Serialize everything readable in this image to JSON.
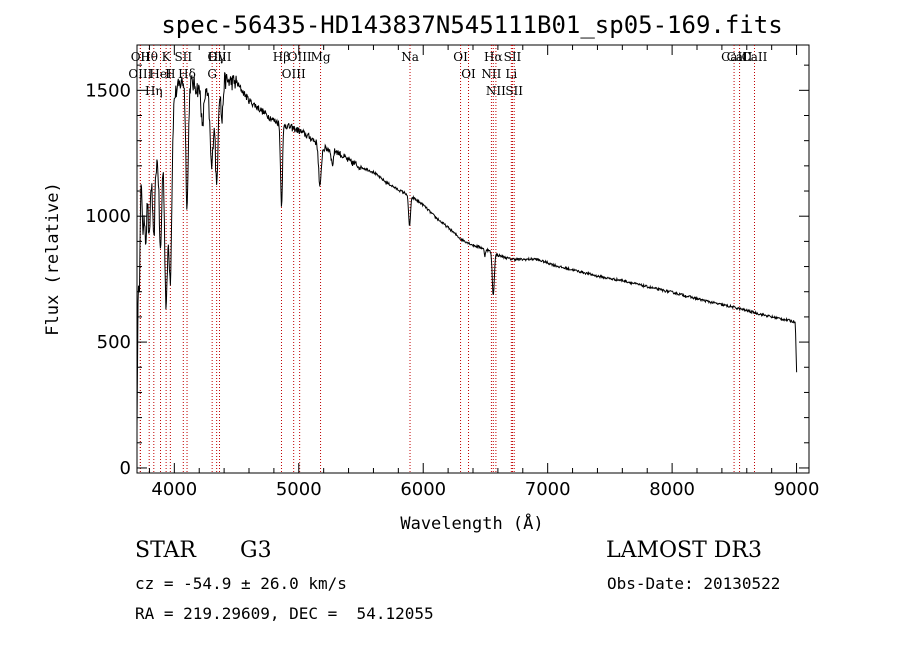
{
  "chart_data": {
    "type": "line",
    "title": "spec-56435-HD143837N545111B01_sp05-169.fits",
    "xlabel": "Wavelength (Å)",
    "ylabel": "Flux (relative)",
    "xlim": [
      3700,
      9100
    ],
    "ylim": [
      -20,
      1680
    ],
    "xticks": [
      4000,
      5000,
      6000,
      7000,
      8000,
      9000
    ],
    "yticks": [
      0,
      500,
      1000,
      1500
    ],
    "continuum": [
      [
        3700,
        400
      ],
      [
        3710,
        1000
      ],
      [
        3730,
        1120
      ],
      [
        3760,
        1060
      ],
      [
        3800,
        1120
      ],
      [
        3850,
        1200
      ],
      [
        3900,
        1300
      ],
      [
        3950,
        1380
      ],
      [
        4000,
        1480
      ],
      [
        4050,
        1530
      ],
      [
        4100,
        1550
      ],
      [
        4200,
        1500
      ],
      [
        4300,
        1470
      ],
      [
        4400,
        1540
      ],
      [
        4500,
        1530
      ],
      [
        4600,
        1460
      ],
      [
        4700,
        1420
      ],
      [
        4800,
        1380
      ],
      [
        4900,
        1360
      ],
      [
        5000,
        1340
      ],
      [
        5100,
        1310
      ],
      [
        5200,
        1270
      ],
      [
        5300,
        1260
      ],
      [
        5400,
        1220
      ],
      [
        5500,
        1195
      ],
      [
        5600,
        1175
      ],
      [
        5700,
        1135
      ],
      [
        5800,
        1105
      ],
      [
        5900,
        1080
      ],
      [
        6000,
        1045
      ],
      [
        6100,
        995
      ],
      [
        6200,
        955
      ],
      [
        6300,
        910
      ],
      [
        6400,
        885
      ],
      [
        6500,
        870
      ],
      [
        6600,
        845
      ],
      [
        6700,
        830
      ],
      [
        6800,
        828
      ],
      [
        6900,
        830
      ],
      [
        7000,
        815
      ],
      [
        7100,
        798
      ],
      [
        7200,
        787
      ],
      [
        7300,
        775
      ],
      [
        7400,
        762
      ],
      [
        7500,
        752
      ],
      [
        7600,
        745
      ],
      [
        7700,
        732
      ],
      [
        7800,
        720
      ],
      [
        7900,
        708
      ],
      [
        8000,
        698
      ],
      [
        8100,
        685
      ],
      [
        8200,
        672
      ],
      [
        8300,
        660
      ],
      [
        8400,
        648
      ],
      [
        8500,
        638
      ],
      [
        8600,
        625
      ],
      [
        8700,
        612
      ],
      [
        8800,
        600
      ],
      [
        8900,
        590
      ],
      [
        8990,
        580
      ],
      [
        9000,
        380
      ]
    ],
    "absorption_features": [
      [
        3705,
        260,
        8
      ],
      [
        3720,
        280,
        5
      ],
      [
        3750,
        150,
        6
      ],
      [
        3771,
        170,
        6
      ],
      [
        3798,
        220,
        7
      ],
      [
        3835,
        280,
        8
      ],
      [
        3889,
        420,
        10
      ],
      [
        3934,
        700,
        12
      ],
      [
        3968,
        650,
        12
      ],
      [
        4102,
        500,
        10
      ],
      [
        4226,
        150,
        8
      ],
      [
        4300,
        280,
        12
      ],
      [
        4340,
        380,
        10
      ],
      [
        4383,
        150,
        8
      ],
      [
        4861,
        320,
        8
      ],
      [
        5170,
        170,
        10
      ],
      [
        5270,
        60,
        8
      ],
      [
        5890,
        120,
        8
      ],
      [
        6563,
        170,
        8
      ],
      [
        6495,
        30,
        5
      ]
    ],
    "spectral_lines": [
      {
        "label": "Hθ",
        "wavelength": 3798
      },
      {
        "label": "OII",
        "wavelength": 3727
      },
      {
        "label": "OIII",
        "wavelength": 3727
      },
      {
        "label": "K",
        "wavelength": 3934
      },
      {
        "label": "HeI",
        "wavelength": 3889
      },
      {
        "label": "Hη",
        "wavelength": 3835
      },
      {
        "label": "SII",
        "wavelength": 4072
      },
      {
        "label": "H",
        "wavelength": 3968
      },
      {
        "label": "Hδ",
        "wavelength": 4102
      },
      {
        "label": "OIII",
        "wavelength": 4363
      },
      {
        "label": "Hγ",
        "wavelength": 4340
      },
      {
        "label": "G",
        "wavelength": 4304
      },
      {
        "label": "OIII",
        "wavelength": 5007
      },
      {
        "label": "OIII",
        "wavelength": 4959
      },
      {
        "label": "Hβ",
        "wavelength": 4861
      },
      {
        "label": "Mg",
        "wavelength": 5175
      },
      {
        "label": "Na",
        "wavelength": 5894
      },
      {
        "label": "OI",
        "wavelength": 6300
      },
      {
        "label": "OI",
        "wavelength": 6364
      },
      {
        "label": "Hα",
        "wavelength": 6563
      },
      {
        "label": "NII",
        "wavelength": 6548
      },
      {
        "label": "NII",
        "wavelength": 6584
      },
      {
        "label": "SII",
        "wavelength": 6717
      },
      {
        "label": "Li",
        "wavelength": 6708
      },
      {
        "label": "SII",
        "wavelength": 6731
      },
      {
        "label": "CaII",
        "wavelength": 8542
      },
      {
        "label": "CaII",
        "wavelength": 8498
      },
      {
        "label": "CaII",
        "wavelength": 8662
      }
    ]
  },
  "info": {
    "object_class": "STAR",
    "subclass": "G3",
    "survey": "LAMOST DR3",
    "redshift": "cz = -54.9 ± 26.0 km/s",
    "obs_date": "Obs-Date: 20130522",
    "coords": "RA = 219.29609, DEC =  54.12055"
  }
}
